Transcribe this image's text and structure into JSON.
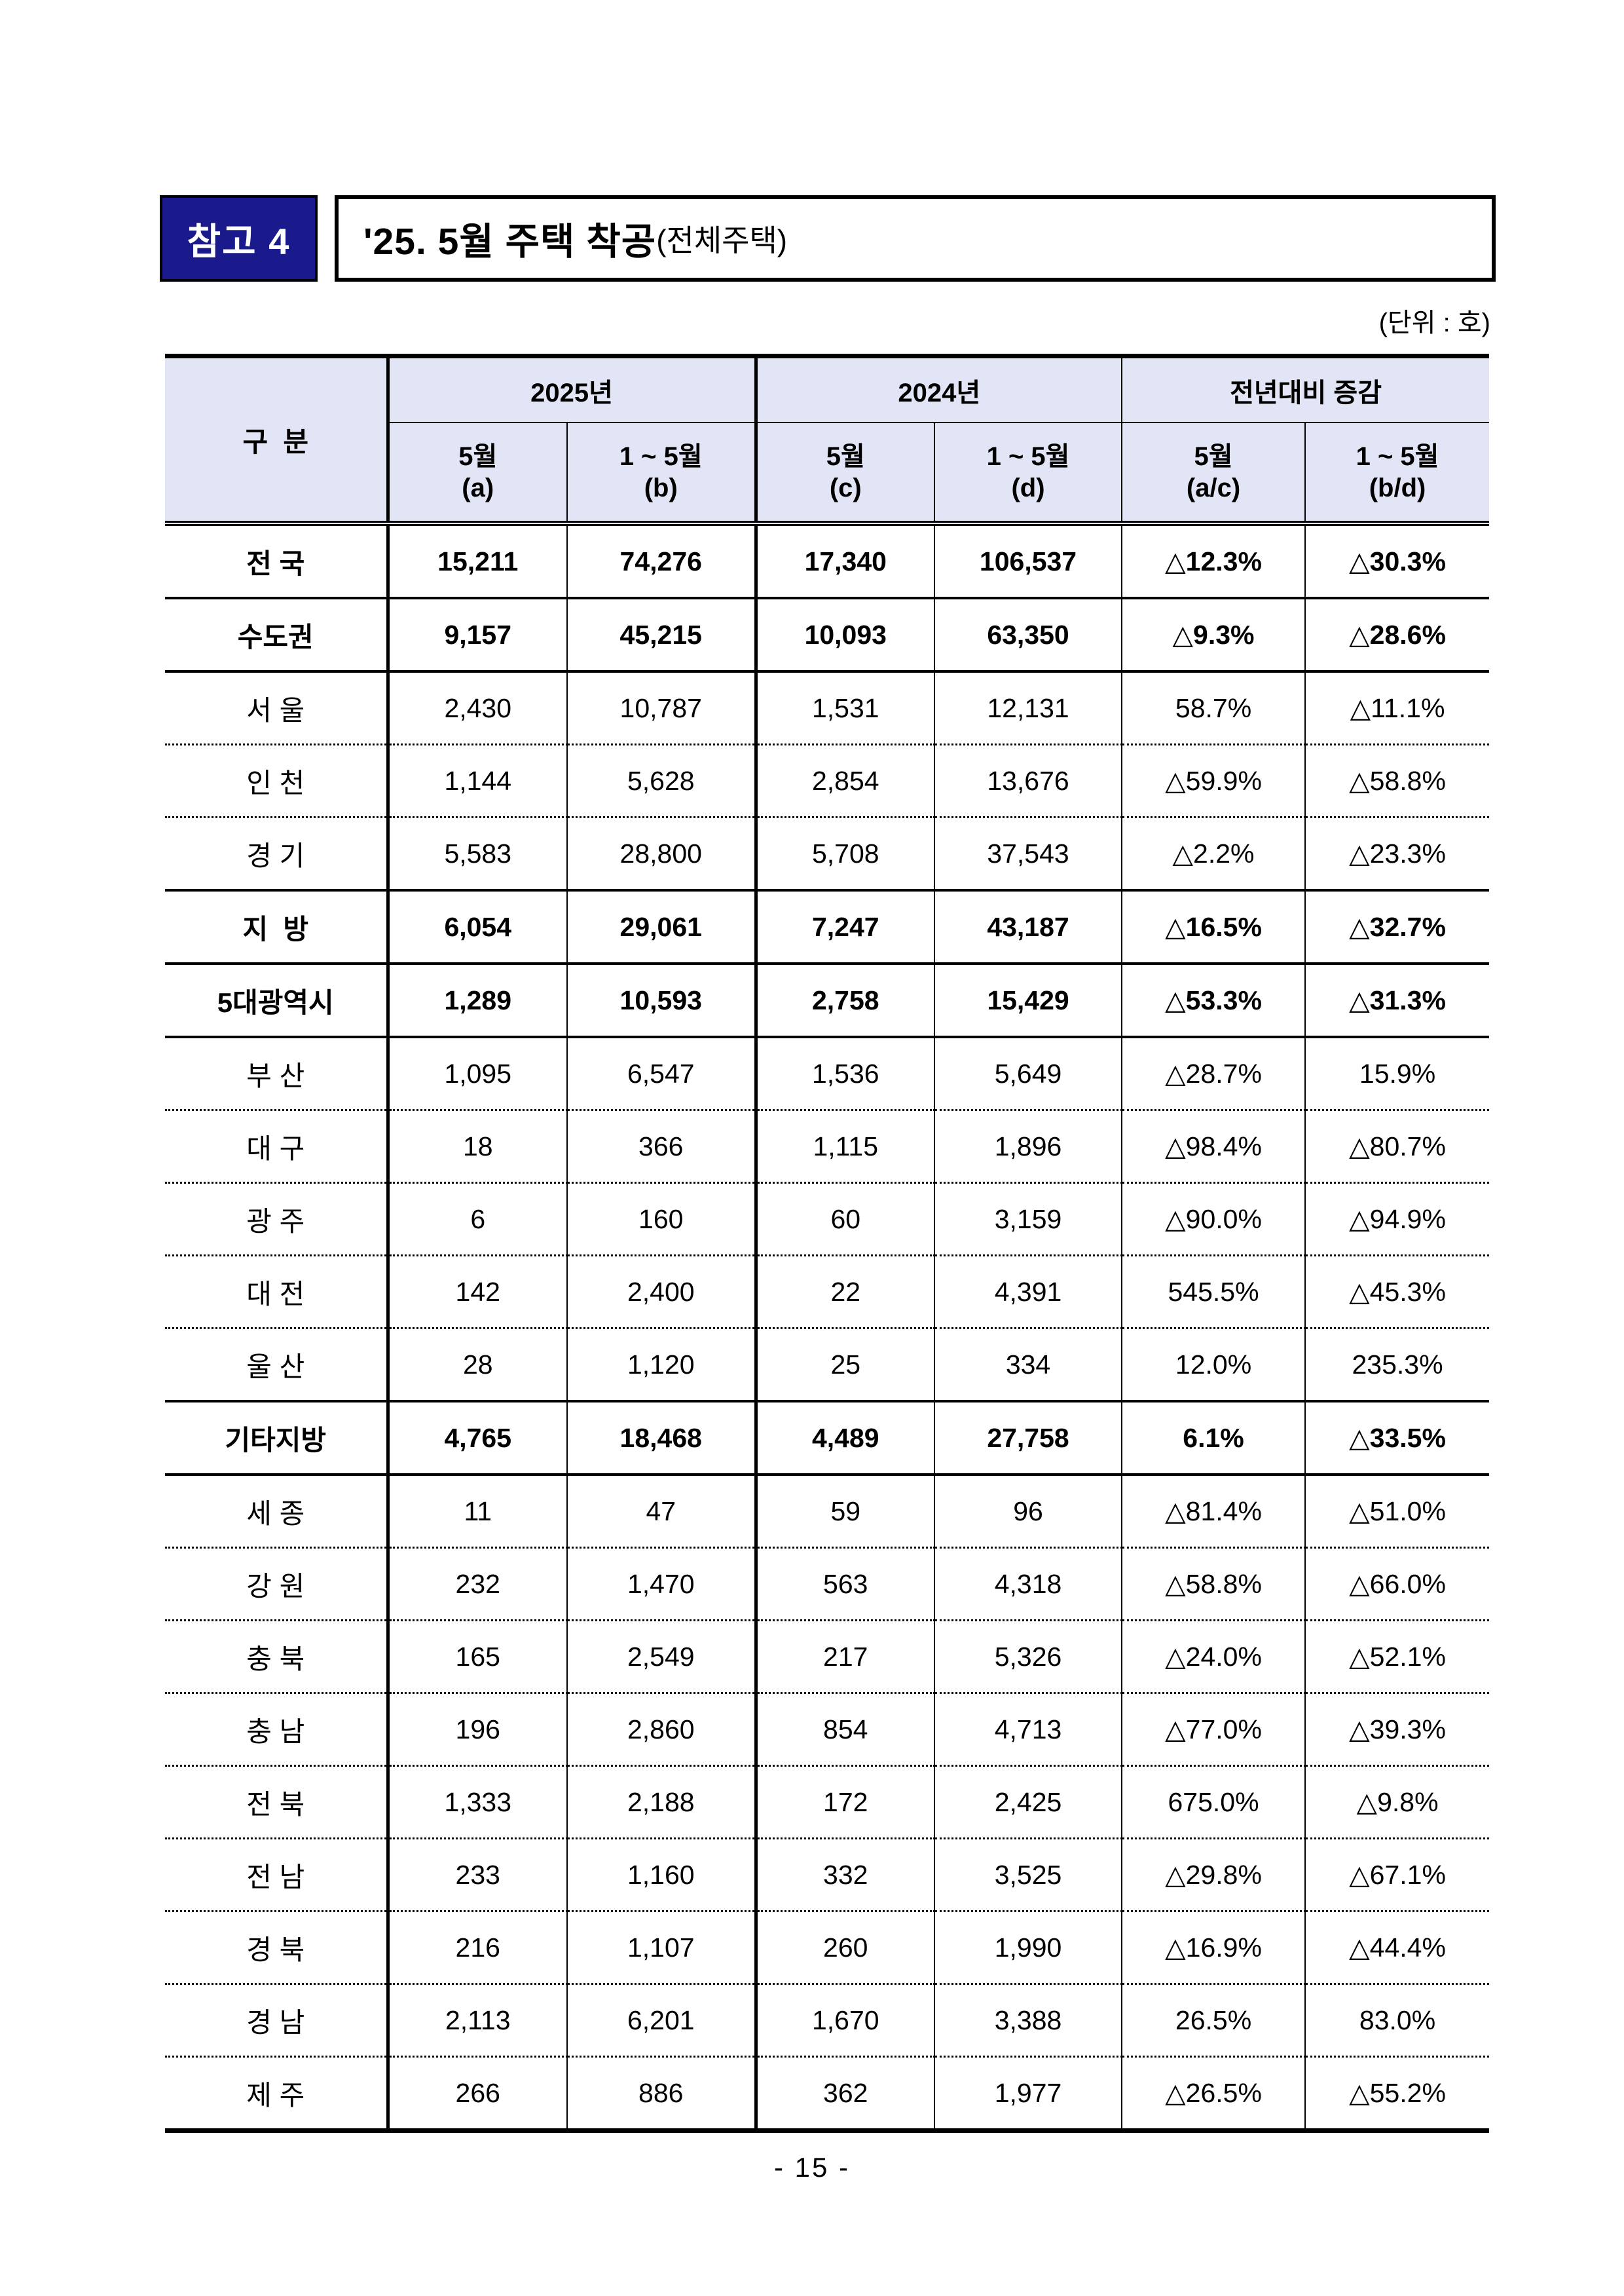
{
  "page": {
    "badge_label": "참고 4",
    "title": "'25. 5월 주택 착공",
    "title_suffix": "(전체주택)",
    "unit_note": "(단위 : 호)",
    "page_number": "- 15 -"
  },
  "colors": {
    "badge_bg": "#1a1a8c",
    "badge_text": "#ffffff",
    "header_bg": "#e2e5f5",
    "border": "#000000"
  },
  "table": {
    "corner_label": "구  분",
    "groups": [
      {
        "label": "2025년",
        "sub": [
          "5월\n(a)",
          "1 ~ 5월\n(b)"
        ]
      },
      {
        "label": "2024년",
        "sub": [
          "5월\n(c)",
          "1 ~ 5월\n(d)"
        ]
      },
      {
        "label": "전년대비 증감",
        "sub": [
          "5월\n(a/c)",
          "1 ~ 5월\n(b/d)"
        ]
      }
    ],
    "rows": [
      {
        "label": "전 국",
        "values": [
          "15,211",
          "74,276",
          "17,340",
          "106,537",
          "△12.3%",
          "△30.3%"
        ],
        "bold": true,
        "rule_below": "thick"
      },
      {
        "label": "수도권",
        "values": [
          "9,157",
          "45,215",
          "10,093",
          "63,350",
          "△9.3%",
          "△28.6%"
        ],
        "bold": true,
        "rule_below": "thick"
      },
      {
        "label": "서 울",
        "values": [
          "2,430",
          "10,787",
          "1,531",
          "12,131",
          "58.7%",
          "△11.1%"
        ],
        "bold": false,
        "rule_below": "dotted"
      },
      {
        "label": "인 천",
        "values": [
          "1,144",
          "5,628",
          "2,854",
          "13,676",
          "△59.9%",
          "△58.8%"
        ],
        "bold": false,
        "rule_below": "dotted"
      },
      {
        "label": "경 기",
        "values": [
          "5,583",
          "28,800",
          "5,708",
          "37,543",
          "△2.2%",
          "△23.3%"
        ],
        "bold": false,
        "rule_below": "thick"
      },
      {
        "label": "지  방",
        "values": [
          "6,054",
          "29,061",
          "7,247",
          "43,187",
          "△16.5%",
          "△32.7%"
        ],
        "bold": true,
        "rule_below": "thick"
      },
      {
        "label": "5대광역시",
        "values": [
          "1,289",
          "10,593",
          "2,758",
          "15,429",
          "△53.3%",
          "△31.3%"
        ],
        "bold": true,
        "rule_below": "thick"
      },
      {
        "label": "부 산",
        "values": [
          "1,095",
          "6,547",
          "1,536",
          "5,649",
          "△28.7%",
          "15.9%"
        ],
        "bold": false,
        "rule_below": "dotted"
      },
      {
        "label": "대 구",
        "values": [
          "18",
          "366",
          "1,115",
          "1,896",
          "△98.4%",
          "△80.7%"
        ],
        "bold": false,
        "rule_below": "dotted"
      },
      {
        "label": "광 주",
        "values": [
          "6",
          "160",
          "60",
          "3,159",
          "△90.0%",
          "△94.9%"
        ],
        "bold": false,
        "rule_below": "dotted"
      },
      {
        "label": "대 전",
        "values": [
          "142",
          "2,400",
          "22",
          "4,391",
          "545.5%",
          "△45.3%"
        ],
        "bold": false,
        "rule_below": "dotted"
      },
      {
        "label": "울 산",
        "values": [
          "28",
          "1,120",
          "25",
          "334",
          "12.0%",
          "235.3%"
        ],
        "bold": false,
        "rule_below": "thick"
      },
      {
        "label": "기타지방",
        "values": [
          "4,765",
          "18,468",
          "4,489",
          "27,758",
          "6.1%",
          "△33.5%"
        ],
        "bold": true,
        "rule_below": "thick"
      },
      {
        "label": "세 종",
        "values": [
          "11",
          "47",
          "59",
          "96",
          "△81.4%",
          "△51.0%"
        ],
        "bold": false,
        "rule_below": "dotted"
      },
      {
        "label": "강 원",
        "values": [
          "232",
          "1,470",
          "563",
          "4,318",
          "△58.8%",
          "△66.0%"
        ],
        "bold": false,
        "rule_below": "dotted"
      },
      {
        "label": "충 북",
        "values": [
          "165",
          "2,549",
          "217",
          "5,326",
          "△24.0%",
          "△52.1%"
        ],
        "bold": false,
        "rule_below": "dotted"
      },
      {
        "label": "충 남",
        "values": [
          "196",
          "2,860",
          "854",
          "4,713",
          "△77.0%",
          "△39.3%"
        ],
        "bold": false,
        "rule_below": "dotted"
      },
      {
        "label": "전 북",
        "values": [
          "1,333",
          "2,188",
          "172",
          "2,425",
          "675.0%",
          "△9.8%"
        ],
        "bold": false,
        "rule_below": "dotted"
      },
      {
        "label": "전 남",
        "values": [
          "233",
          "1,160",
          "332",
          "3,525",
          "△29.8%",
          "△67.1%"
        ],
        "bold": false,
        "rule_below": "dotted"
      },
      {
        "label": "경 북",
        "values": [
          "216",
          "1,107",
          "260",
          "1,990",
          "△16.9%",
          "△44.4%"
        ],
        "bold": false,
        "rule_below": "dotted"
      },
      {
        "label": "경 남",
        "values": [
          "2,113",
          "6,201",
          "1,670",
          "3,388",
          "26.5%",
          "83.0%"
        ],
        "bold": false,
        "rule_below": "dotted"
      },
      {
        "label": "제 주",
        "values": [
          "266",
          "886",
          "362",
          "1,977",
          "△26.5%",
          "△55.2%"
        ],
        "bold": false,
        "rule_below": "none"
      }
    ]
  }
}
